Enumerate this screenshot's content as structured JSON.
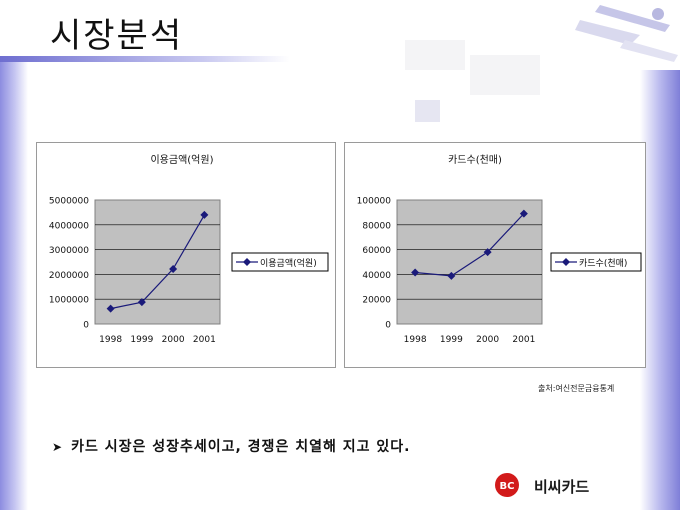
{
  "slide": {
    "title": "시장분석",
    "source_note": "출처:여신전문금융통계",
    "bullet": "카드 시장은 성장추세이고, 경쟁은 치열해 지고 있다.",
    "logo_text": "비씨카드",
    "logo_mark_text": "BC"
  },
  "colors": {
    "accent": "#7f7fd8",
    "series": "#1a1a7a",
    "plot_area": "#c0c0c0",
    "logo_red": "#d21a1a"
  },
  "chart_data": [
    {
      "type": "line",
      "title": "이용금액(억원)",
      "categories": [
        "1998",
        "1999",
        "2000",
        "2001"
      ],
      "series": [
        {
          "name": "이용금액(억원)",
          "values": [
            620000,
            880000,
            2220000,
            4400000
          ]
        }
      ],
      "ylim": [
        0,
        5000000
      ],
      "yticks": [
        "0",
        "1000000",
        "2000000",
        "3000000",
        "4000000",
        "5000000"
      ],
      "xlabel": "",
      "ylabel": "",
      "grid": true,
      "legend": "right"
    },
    {
      "type": "line",
      "title": "카드수(천매)",
      "categories": [
        "1998",
        "1999",
        "2000",
        "2001"
      ],
      "series": [
        {
          "name": "카드수(천매)",
          "values": [
            41500,
            38800,
            58000,
            89000
          ]
        }
      ],
      "ylim": [
        0,
        100000
      ],
      "yticks": [
        "0",
        "20000",
        "40000",
        "60000",
        "80000",
        "100000"
      ],
      "xlabel": "",
      "ylabel": "",
      "grid": true,
      "legend": "right"
    }
  ]
}
